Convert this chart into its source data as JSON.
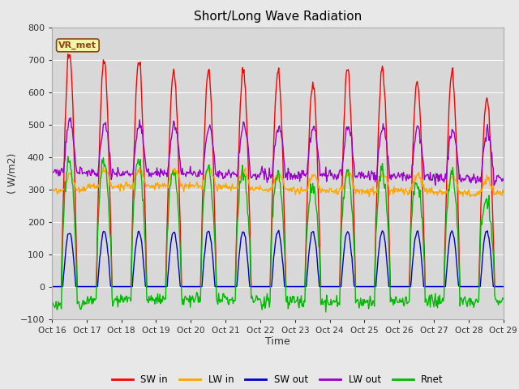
{
  "title": "Short/Long Wave Radiation",
  "xlabel": "Time",
  "ylabel": "( W/m2)",
  "ylim": [
    -100,
    800
  ],
  "background_color": "#e8e8e8",
  "plot_bg_color": "#d8d8d8",
  "annotation_text": "VR_met",
  "annotation_color": "#8B4513",
  "annotation_bg": "#f5f5aa",
  "tick_labels": [
    "Oct 16",
    "Oct 17",
    "Oct 18",
    "Oct 19",
    "Oct 20",
    "Oct 21",
    "Oct 22",
    "Oct 23",
    "Oct 24",
    "Oct 25",
    "Oct 26",
    "Oct 27",
    "Oct 28",
    "Oct 29"
  ],
  "colors": {
    "SW_in": "#ff0000",
    "LW_in": "#ffa500",
    "SW_out": "#0000cc",
    "LW_out": "#9900cc",
    "Rnet": "#00bb00"
  },
  "lw": 1.0,
  "n_days": 13,
  "hours_per_day": 48,
  "sw_peaks": [
    720,
    695,
    695,
    665,
    665,
    665,
    665,
    625,
    670,
    670,
    635,
    660,
    580
  ],
  "lw_in_base": [
    295,
    310,
    310,
    310,
    310,
    305,
    300,
    295,
    295,
    295,
    295,
    290,
    285
  ],
  "lw_out_base": [
    355,
    350,
    350,
    350,
    345,
    345,
    345,
    345,
    345,
    340,
    340,
    335,
    330
  ]
}
